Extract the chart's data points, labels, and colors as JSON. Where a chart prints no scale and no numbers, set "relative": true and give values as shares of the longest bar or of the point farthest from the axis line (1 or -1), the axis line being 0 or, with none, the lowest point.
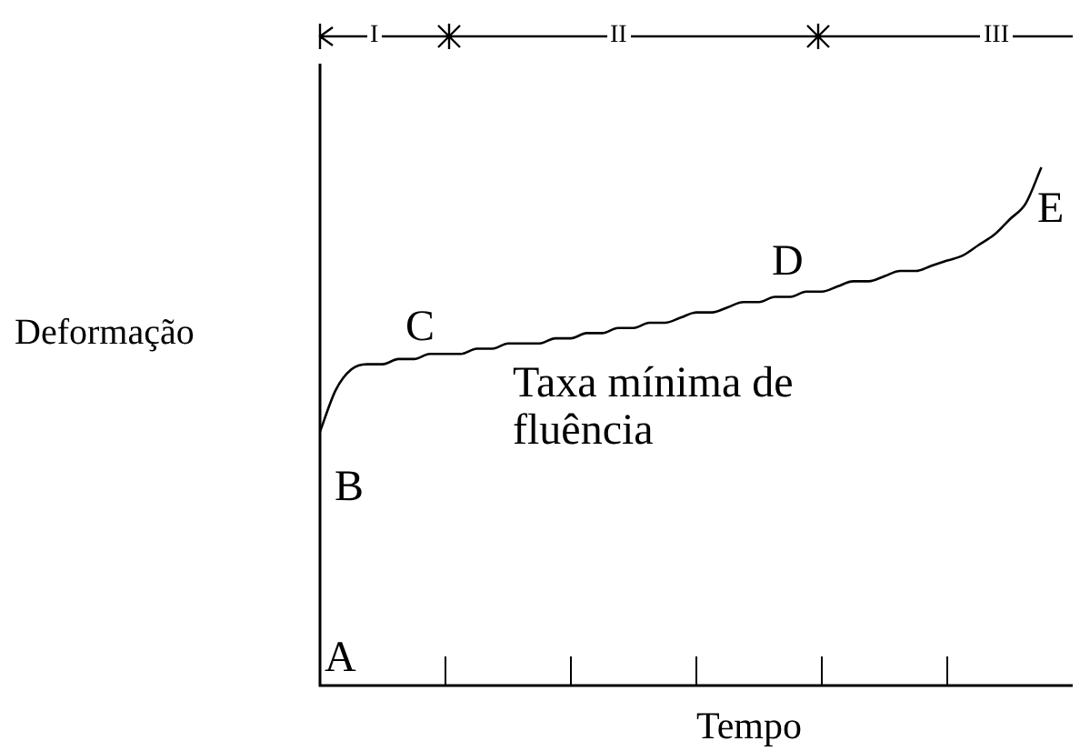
{
  "chart_data": {
    "type": "line",
    "relative": true,
    "xlabel": "Tempo",
    "ylabel": "Deformação",
    "marker": "none",
    "line_style": "solid",
    "categories": [
      null,
      null,
      null,
      null,
      null,
      null,
      null,
      null,
      null,
      null,
      null,
      null,
      null,
      null,
      null,
      null,
      null,
      null,
      null,
      null,
      null,
      null,
      null,
      null,
      null,
      null,
      null,
      null,
      null,
      null,
      null,
      null,
      null,
      null,
      null,
      null,
      null,
      null,
      null,
      null,
      null,
      null,
      null,
      null,
      null,
      null,
      null,
      null,
      null
    ],
    "series": [
      {
        "color": "#000000",
        "values": [
          0.49,
          0.57,
          0.61,
          0.62,
          0.62,
          0.63,
          0.63,
          0.64,
          0.64,
          0.64,
          0.65,
          0.65,
          0.66,
          0.66,
          0.66,
          0.67,
          0.67,
          0.68,
          0.68,
          0.69,
          0.69,
          0.7,
          0.7,
          0.71,
          0.72,
          0.72,
          0.73,
          0.74,
          0.74,
          0.75,
          0.75,
          0.76,
          0.76,
          0.77,
          0.78,
          0.78,
          0.79,
          0.8,
          0.8,
          0.81,
          0.82,
          0.83,
          0.85,
          0.87,
          0.9,
          0.93,
          1,
          null,
          null
        ]
      }
    ],
    "annotations": [
      "I",
      "II",
      "III",
      "A",
      "B",
      "C",
      "D",
      "E",
      "Taxa mínima de fluência"
    ]
  }
}
